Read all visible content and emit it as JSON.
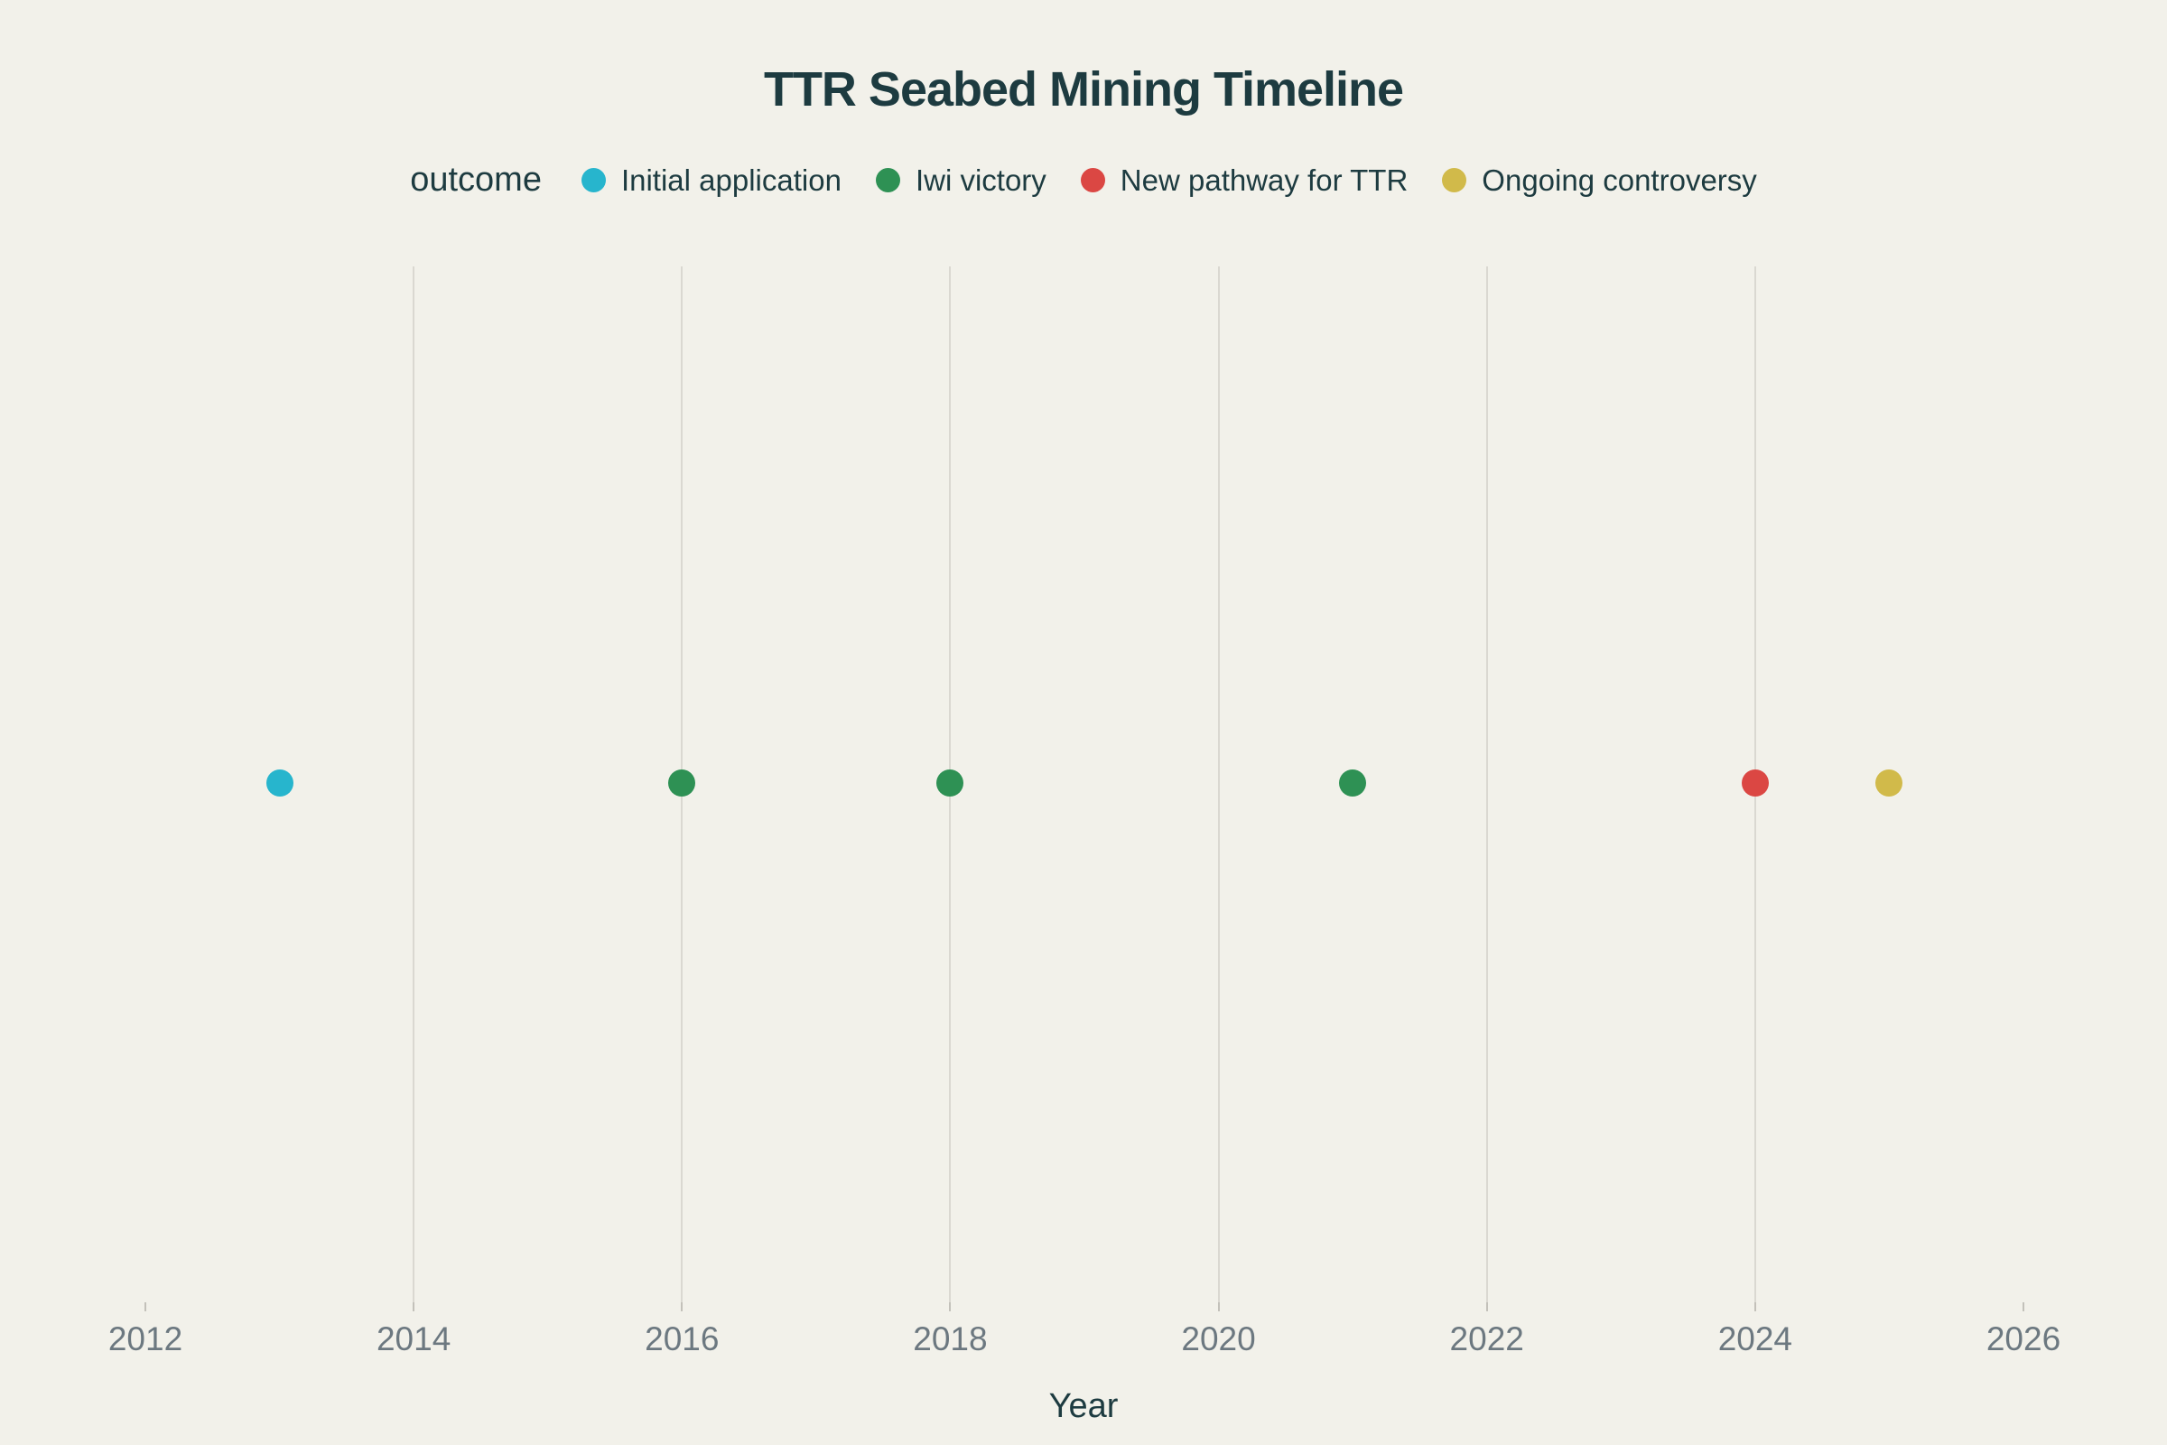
{
  "chart_data": {
    "type": "scatter",
    "title": "TTR Seabed Mining Timeline",
    "xlabel": "Year",
    "ylabel": "",
    "legend_title": "outcome",
    "legend_position": "top-center",
    "grid": "vertical-only",
    "x_axis": {
      "min": 2012,
      "max": 2026,
      "tick_years": [
        2012,
        2014,
        2016,
        2018,
        2020,
        2022,
        2024,
        2026
      ],
      "gridline_years": [
        2014,
        2016,
        2018,
        2020,
        2022,
        2024
      ]
    },
    "series": [
      {
        "name": "Initial application",
        "color": "#27B5CD",
        "x": [
          2013
        ]
      },
      {
        "name": "Iwi victory",
        "color": "#2E9154",
        "x": [
          2016,
          2018,
          2021
        ]
      },
      {
        "name": "New pathway for TTR",
        "color": "#DB4743",
        "x": [
          2024
        ]
      },
      {
        "name": "Ongoing controversy",
        "color": "#D1BA4A",
        "x": [
          2025
        ]
      }
    ],
    "points": [
      {
        "year": 2013,
        "outcome": "Initial application"
      },
      {
        "year": 2016,
        "outcome": "Iwi victory"
      },
      {
        "year": 2018,
        "outcome": "Iwi victory"
      },
      {
        "year": 2021,
        "outcome": "Iwi victory"
      },
      {
        "year": 2024,
        "outcome": "New pathway for TTR"
      },
      {
        "year": 2025,
        "outcome": "Ongoing controversy"
      }
    ]
  },
  "colors": {
    "background": "#F2F1EA",
    "title_text": "#1D3B40",
    "tick_text": "#6C7880",
    "gridline": "#DAD8D1",
    "tick_mark": "#C3C1BA"
  }
}
